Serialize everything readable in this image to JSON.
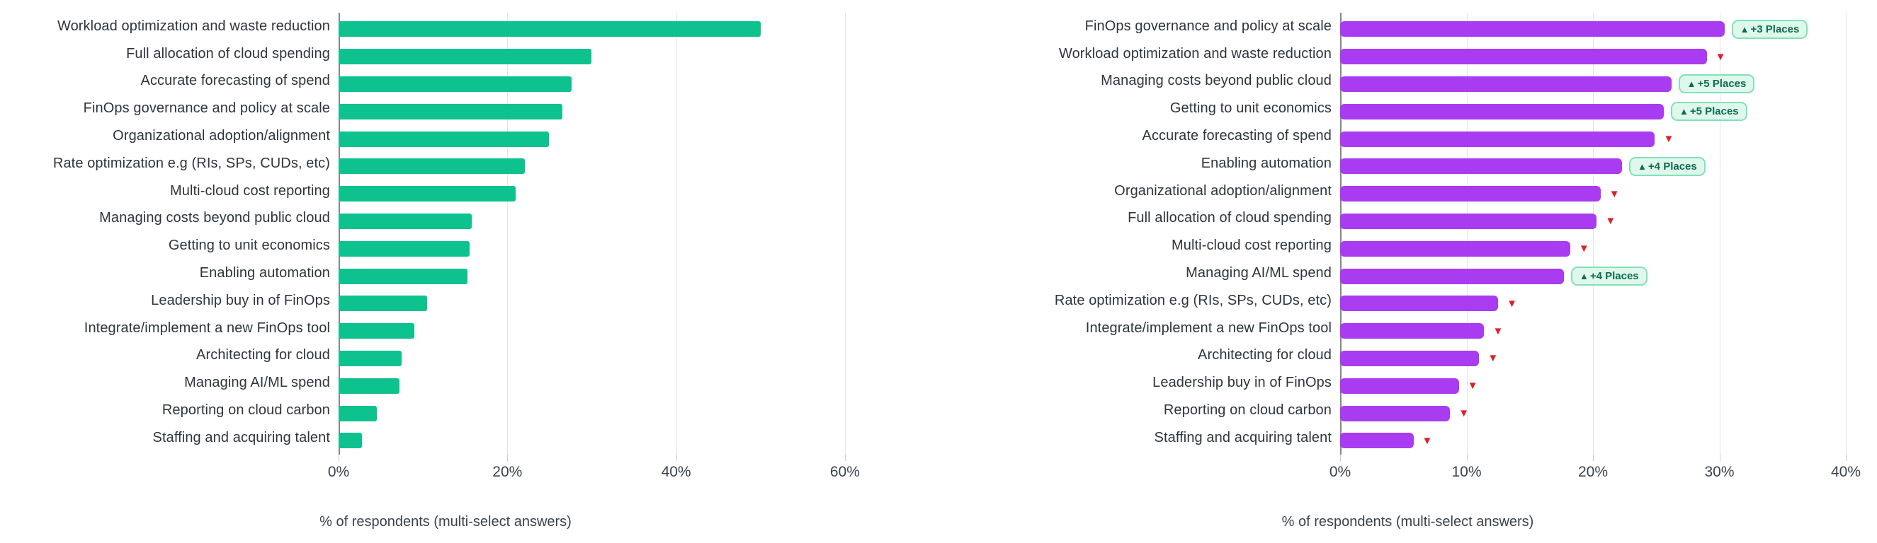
{
  "symbols": {
    "up": "▲",
    "down": "▼"
  },
  "colors": {
    "green_bar": "#0DC28E",
    "purple_bar": "#A93BF0",
    "badge_bg": "#DFF8EC",
    "badge_border": "#82E0BC",
    "badge_text": "#0E6B50",
    "marker_red": "#DE2127",
    "gridline": "#E4E5E8",
    "axis_line": "#83888F"
  },
  "chart_data": [
    {
      "type": "bar",
      "orientation": "horizontal",
      "title": "",
      "xlabel": "% of respondents (multi-select answers)",
      "ylabel": "",
      "xlim": [
        0,
        65
      ],
      "grid": true,
      "legend": "none",
      "bar_color": "#0DC28E",
      "axis_ticks": [
        0,
        20,
        40,
        60
      ],
      "tick_labels": [
        "0%",
        "20%",
        "40%",
        "60%"
      ],
      "categories": [
        "Workload optimization and waste reduction",
        "Full allocation of cloud spending",
        "Accurate forecasting of spend",
        "FinOps governance and policy at scale",
        "Organizational adoption/alignment",
        "Rate optimization e.g (RIs, SPs, CUDs, etc)",
        "Multi-cloud cost reporting",
        "Managing costs beyond public cloud",
        "Getting to unit economics",
        "Enabling automation",
        "Leadership buy in of FinOps",
        "Integrate/implement a new FinOps tool",
        "Architecting for cloud",
        "Managing AI/ML spend",
        "Reporting on cloud carbon",
        "Staffing and acquiring talent"
      ],
      "values": [
        50,
        30,
        27.6,
        26.5,
        24.9,
        22.1,
        21,
        15.8,
        15.5,
        15.3,
        10.5,
        9,
        7.5,
        7.2,
        4.5,
        2.8
      ]
    },
    {
      "type": "bar",
      "orientation": "horizontal",
      "title": "",
      "xlabel": "% of respondents (multi-select answers)",
      "ylabel": "",
      "xlim": [
        0,
        42
      ],
      "grid": true,
      "legend": "none",
      "bar_color": "#A93BF0",
      "axis_ticks": [
        0,
        10,
        20,
        30,
        40
      ],
      "tick_labels": [
        "0%",
        "10%",
        "20%",
        "30%",
        "40%"
      ],
      "categories": [
        "FinOps governance and policy at scale",
        "Workload optimization and waste reduction",
        "Managing costs beyond public cloud",
        "Getting to unit economics",
        "Accurate forecasting of spend",
        "Enabling automation",
        "Organizational adoption/alignment",
        "Full allocation of cloud spending",
        "Multi-cloud cost reporting",
        "Managing AI/ML spend",
        "Rate optimization e.g (RIs, SPs, CUDs, etc)",
        "Integrate/implement a new FinOps tool",
        "Architecting for cloud",
        "Leadership buy in of FinOps",
        "Reporting on cloud carbon",
        "Staffing and acquiring talent"
      ],
      "values": [
        30.4,
        29,
        26.2,
        25.6,
        24.9,
        22.3,
        20.6,
        20.3,
        18.2,
        17.7,
        12.5,
        11.4,
        11,
        9.4,
        8.7,
        5.8
      ],
      "changes": [
        {
          "direction": "up",
          "label": "+3 Places"
        },
        {
          "direction": "down",
          "label": ""
        },
        {
          "direction": "up",
          "label": "+5 Places"
        },
        {
          "direction": "up",
          "label": "+5 Places"
        },
        {
          "direction": "down",
          "label": ""
        },
        {
          "direction": "up",
          "label": "+4 Places"
        },
        {
          "direction": "down",
          "label": ""
        },
        {
          "direction": "down",
          "label": ""
        },
        {
          "direction": "down",
          "label": ""
        },
        {
          "direction": "up",
          "label": "+4 Places"
        },
        {
          "direction": "down",
          "label": ""
        },
        {
          "direction": "down",
          "label": ""
        },
        {
          "direction": "down",
          "label": ""
        },
        {
          "direction": "down",
          "label": ""
        },
        {
          "direction": "down",
          "label": ""
        },
        {
          "direction": "down",
          "label": ""
        }
      ]
    }
  ]
}
